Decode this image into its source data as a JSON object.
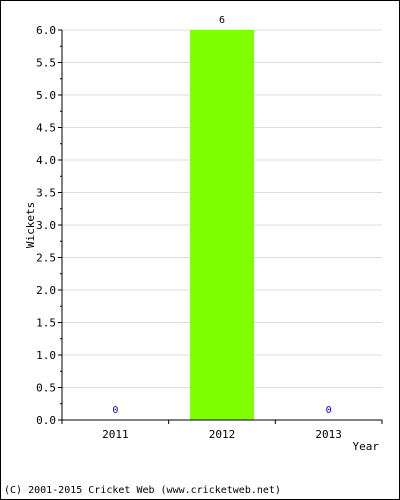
{
  "chart_data": {
    "type": "bar",
    "categories": [
      "2011",
      "2012",
      "2013"
    ],
    "values": [
      0,
      6,
      0
    ],
    "value_labels": [
      "0",
      "6",
      "0"
    ],
    "xlabel": "Year",
    "ylabel": "Wickets",
    "ylim": [
      0,
      6
    ],
    "yticks": [
      "0.0",
      "0.5",
      "1.0",
      "1.5",
      "2.0",
      "2.5",
      "3.0",
      "3.5",
      "4.0",
      "4.5",
      "5.0",
      "5.5",
      "6.0"
    ],
    "grid": true,
    "bar_color": "#80ff00",
    "zero_label_color": "#0000cc",
    "label_color": "#000000",
    "grid_color": "#dddddd"
  },
  "footer": {
    "credit": "(C) 2001-2015 Cricket Web (www.cricketweb.net)"
  }
}
